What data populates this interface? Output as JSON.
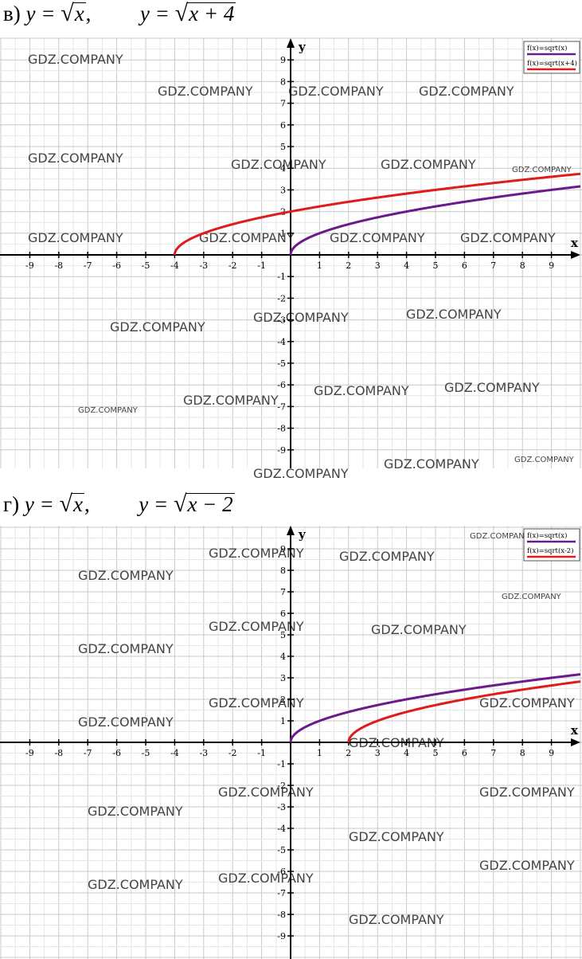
{
  "charts": [
    {
      "id": "A",
      "heading": {
        "letter": "в)",
        "f1_lhs": "y =",
        "f1_arg": "x",
        "f1_sep": ",",
        "f2_lhs": "y =",
        "f2_arg": "x + 4"
      },
      "watermark_text": "GDZ.COMPANY",
      "colors": {
        "series1": "#6a1a8a",
        "series2": "#e01b1b"
      }
    },
    {
      "id": "B",
      "heading": {
        "letter": "г)",
        "f1_lhs": "y =",
        "f1_arg": "x",
        "f1_sep": ",",
        "f2_lhs": "y =",
        "f2_arg": "x − 2"
      },
      "watermark_text": "GDZ.COMPANY",
      "colors": {
        "series1": "#6a1a8a",
        "series2": "#e01b1b"
      }
    }
  ],
  "chart_data": [
    {
      "type": "line",
      "xlabel": "x",
      "ylabel": "y",
      "xlim": [
        -10,
        10
      ],
      "ylim": [
        -10,
        10
      ],
      "x_ticks": [
        -9,
        -8,
        -7,
        -6,
        -5,
        -4,
        -3,
        -2,
        -1,
        1,
        2,
        3,
        4,
        5,
        6,
        7,
        8,
        9
      ],
      "y_ticks": [
        -9,
        -8,
        -7,
        -6,
        -5,
        -4,
        -3,
        -2,
        -1,
        1,
        2,
        3,
        4,
        5,
        6,
        7,
        8,
        9
      ],
      "grid": true,
      "legend_position": "top-right",
      "series": [
        {
          "name": "f(x)=sqrt(x)",
          "x": [
            0,
            1,
            4,
            9,
            10
          ],
          "y": [
            0,
            1,
            2,
            3,
            3.16
          ]
        },
        {
          "name": "f(x)=sqrt(x+4)",
          "x": [
            -4,
            -3,
            0,
            5,
            10
          ],
          "y": [
            0,
            1,
            2,
            3,
            3.74
          ]
        }
      ]
    },
    {
      "type": "line",
      "xlabel": "x",
      "ylabel": "y",
      "xlim": [
        -10,
        10
      ],
      "ylim": [
        -10,
        10
      ],
      "x_ticks": [
        -9,
        -8,
        -7,
        -6,
        -5,
        -4,
        -3,
        -2,
        -1,
        1,
        2,
        3,
        4,
        5,
        6,
        7,
        8,
        9
      ],
      "y_ticks": [
        -9,
        -8,
        -7,
        -6,
        -5,
        -4,
        -3,
        -2,
        -1,
        1,
        2,
        3,
        4,
        5,
        6,
        7,
        8,
        9
      ],
      "grid": true,
      "legend_position": "top-right",
      "series": [
        {
          "name": "f(x)=sqrt(x)",
          "x": [
            0,
            1,
            4,
            9,
            10
          ],
          "y": [
            0,
            1,
            2,
            3,
            3.16
          ]
        },
        {
          "name": "f(x)=sqrt(x-2)",
          "x": [
            2,
            3,
            6,
            10
          ],
          "y": [
            0,
            1,
            2,
            2.83
          ]
        }
      ]
    }
  ]
}
